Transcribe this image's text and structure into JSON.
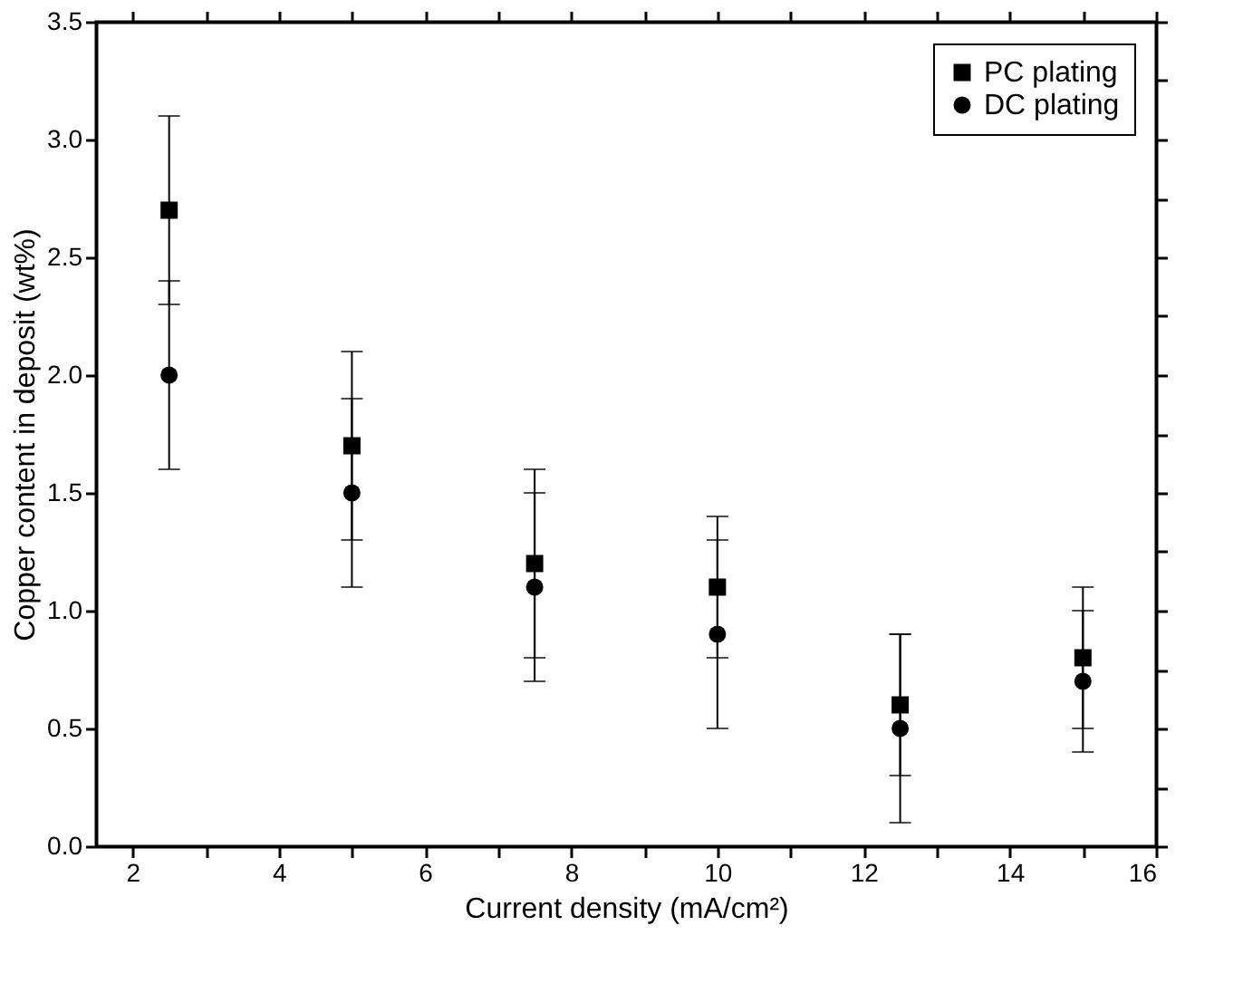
{
  "chart_data": {
    "type": "scatter",
    "xlabel": "Current density (mA/cm²)",
    "ylabel": "Copper content in deposit (wt%)",
    "x": [
      2.5,
      5,
      7.5,
      10,
      12.5,
      15
    ],
    "series": [
      {
        "name": "PC plating",
        "color": "#000000",
        "marker": "square",
        "values": [
          2.7,
          1.7,
          1.2,
          1.1,
          0.6,
          0.8
        ],
        "errors": [
          0.4,
          0.4,
          0.4,
          0.3,
          0.3,
          0.3
        ]
      },
      {
        "name": "DC plating",
        "color": "#000000",
        "marker": "circle",
        "values": [
          2.0,
          1.5,
          1.1,
          0.9,
          0.5,
          0.7
        ],
        "errors": [
          0.4,
          0.4,
          0.4,
          0.4,
          0.4,
          0.3
        ]
      }
    ],
    "xlim": [
      1.5,
      16
    ],
    "xticks": [
      2,
      {
        "value": 3,
        "label": null
      },
      4,
      {
        "value": 5,
        "label": null
      },
      6,
      {
        "value": 7,
        "label": null
      },
      8,
      {
        "value": 9,
        "label": null
      },
      10,
      {
        "value": 11,
        "label": null
      },
      12,
      {
        "value": 13,
        "label": null
      },
      14,
      {
        "value": 15,
        "label": null
      },
      16
    ],
    "ylim": [
      0,
      3.5
    ],
    "yticks": [
      {
        "value": 0,
        "label": "0.0"
      },
      {
        "value": 0.25,
        "label": null
      },
      0.5,
      {
        "value": 0.75,
        "label": null
      },
      {
        "value": 1,
        "label": "1.0"
      },
      {
        "value": 1.25,
        "label": null
      },
      1.5,
      {
        "value": 1.75,
        "label": null
      },
      {
        "value": 2,
        "label": "2.0"
      },
      {
        "value": 2.25,
        "label": null
      },
      2.5,
      {
        "value": 2.75,
        "label": null
      },
      {
        "value": 3,
        "label": "3.0"
      },
      {
        "value": 3.25,
        "label": null
      },
      3.5
    ],
    "grid": false,
    "legend": "top right"
  }
}
